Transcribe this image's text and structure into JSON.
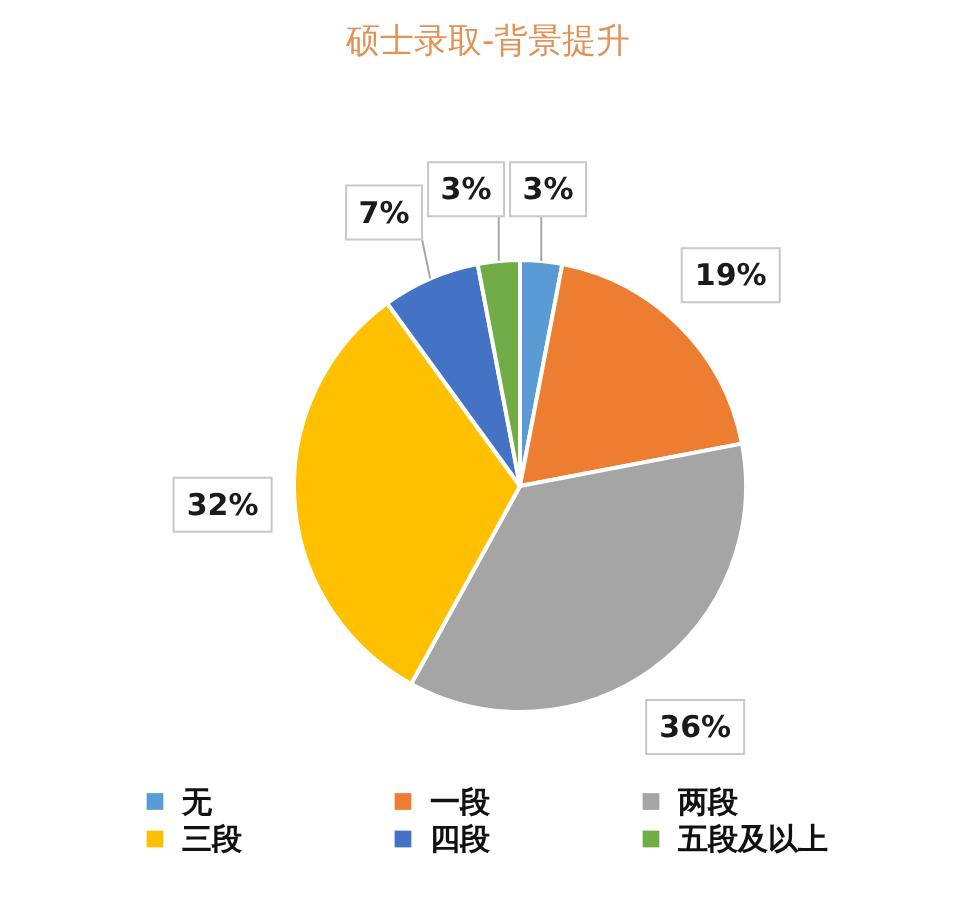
{
  "chart_data": {
    "type": "pie",
    "title": "硕士录取-背景提升",
    "categories": [
      "无",
      "一段",
      "两段",
      "三段",
      "四段",
      "五段及以上"
    ],
    "values": [
      3,
      19,
      36,
      32,
      7,
      3
    ],
    "colors": [
      "#5b9bd5",
      "#ed7d31",
      "#a5a5a5",
      "#ffc000",
      "#4472c4",
      "#70ad47"
    ],
    "value_labels": [
      "3%",
      "19%",
      "36%",
      "32%",
      "7%",
      "3%"
    ],
    "legend": "bottom"
  }
}
